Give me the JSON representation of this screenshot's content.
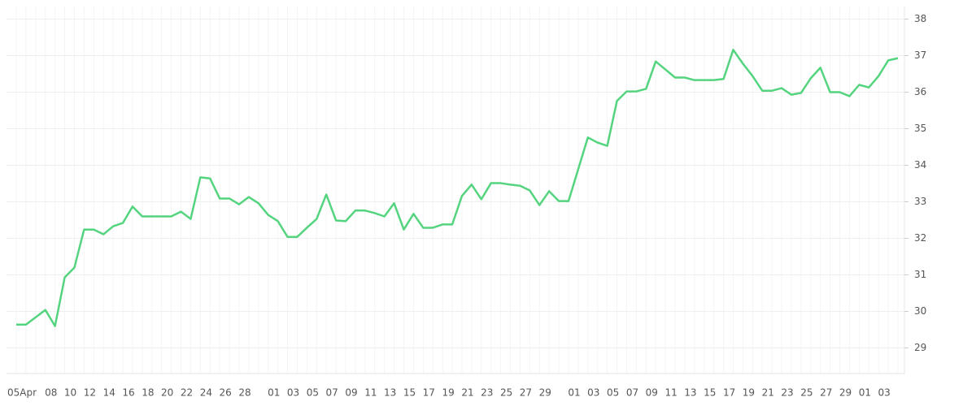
{
  "chart_data": {
    "type": "line",
    "categories": [
      "05Apr",
      null,
      null,
      "08",
      null,
      "10",
      null,
      "12",
      null,
      "14",
      null,
      "16",
      null,
      "18",
      null,
      "20",
      null,
      "22",
      null,
      "24",
      null,
      "26",
      null,
      "28",
      null,
      null,
      "01",
      null,
      "03",
      null,
      "05",
      null,
      "07",
      null,
      "09",
      null,
      "11",
      null,
      "13",
      null,
      "15",
      null,
      "17",
      null,
      "19",
      null,
      "21",
      null,
      "23",
      null,
      "25",
      null,
      "27",
      null,
      "29",
      null,
      null,
      "01",
      null,
      "03",
      null,
      "05",
      null,
      "07",
      null,
      "09",
      null,
      "11",
      null,
      "13",
      null,
      "15",
      null,
      "17",
      null,
      "19",
      null,
      "21",
      null,
      "23",
      null,
      "25",
      null,
      "27",
      null,
      "29",
      null,
      "01",
      null,
      "03",
      null,
      null
    ],
    "series": [
      {
        "color": "#55d47f",
        "values": [
          29.64,
          29.64,
          29.84,
          30.04,
          29.6,
          30.93,
          31.2,
          32.24,
          32.24,
          32.11,
          32.33,
          32.42,
          32.87,
          32.6,
          32.6,
          32.6,
          32.6,
          32.73,
          32.53,
          33.67,
          33.64,
          33.09,
          33.09,
          32.93,
          33.13,
          32.96,
          32.64,
          32.47,
          32.04,
          32.04,
          32.29,
          32.53,
          33.2,
          32.49,
          32.47,
          32.76,
          32.76,
          32.69,
          32.6,
          32.96,
          32.24,
          32.67,
          32.29,
          32.29,
          32.38,
          32.38,
          33.16,
          33.47,
          33.07,
          33.51,
          33.51,
          33.47,
          33.44,
          33.31,
          32.91,
          33.29,
          33.02,
          33.02,
          33.89,
          34.76,
          34.62,
          34.53,
          35.76,
          36.02,
          36.02,
          36.09,
          36.84,
          36.62,
          36.4,
          36.4,
          36.33,
          36.33,
          36.33,
          36.36,
          37.16,
          36.78,
          36.44,
          36.04,
          36.04,
          36.11,
          35.93,
          35.98,
          36.38,
          36.67,
          36.0,
          36.0,
          35.89,
          36.2,
          36.13,
          36.44,
          36.87,
          36.93
        ]
      }
    ],
    "ylim": [
      28.3,
      38.3
    ],
    "yticks": [
      29,
      30,
      31,
      32,
      33,
      34,
      35,
      36,
      37,
      38
    ],
    "grid": true
  }
}
